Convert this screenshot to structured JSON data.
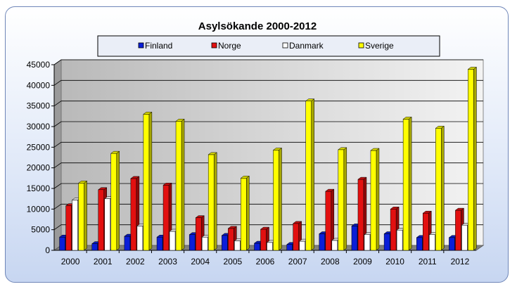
{
  "chart_data": {
    "type": "bar",
    "title": "Asylsökande 2000-2012",
    "xlabel": "",
    "ylabel": "",
    "categories": [
      "2000",
      "2001",
      "2002",
      "2003",
      "2004",
      "2005",
      "2006",
      "2007",
      "2008",
      "2009",
      "2010",
      "2011",
      "2012"
    ],
    "series": [
      {
        "name": "Finland",
        "color": "#0a1ed8",
        "values": [
          3200,
          1600,
          3400,
          3200,
          3800,
          3600,
          1700,
          1400,
          4000,
          5900,
          4000,
          3100,
          3100
        ]
      },
      {
        "name": "Norge",
        "color": "#e21010",
        "values": [
          10800,
          14700,
          17400,
          15800,
          7900,
          5300,
          5100,
          6500,
          14300,
          17200,
          10000,
          9000,
          9700
        ]
      },
      {
        "name": "Danmark",
        "color": "#ffffff",
        "values": [
          12200,
          12500,
          5900,
          4600,
          3200,
          2300,
          1900,
          2200,
          2400,
          3800,
          4900,
          3800,
          6100
        ]
      },
      {
        "name": "Sverige",
        "color": "#ffff00",
        "values": [
          16300,
          23500,
          33000,
          31300,
          23200,
          17500,
          24300,
          36200,
          24400,
          24200,
          31800,
          29600,
          43900
        ]
      }
    ],
    "ylim": [
      0,
      45000
    ],
    "yticks": [
      "0",
      "5000",
      "10000",
      "15000",
      "20000",
      "25000",
      "30000",
      "35000",
      "40000",
      "45000"
    ],
    "grid": true,
    "legend_position": "top"
  }
}
